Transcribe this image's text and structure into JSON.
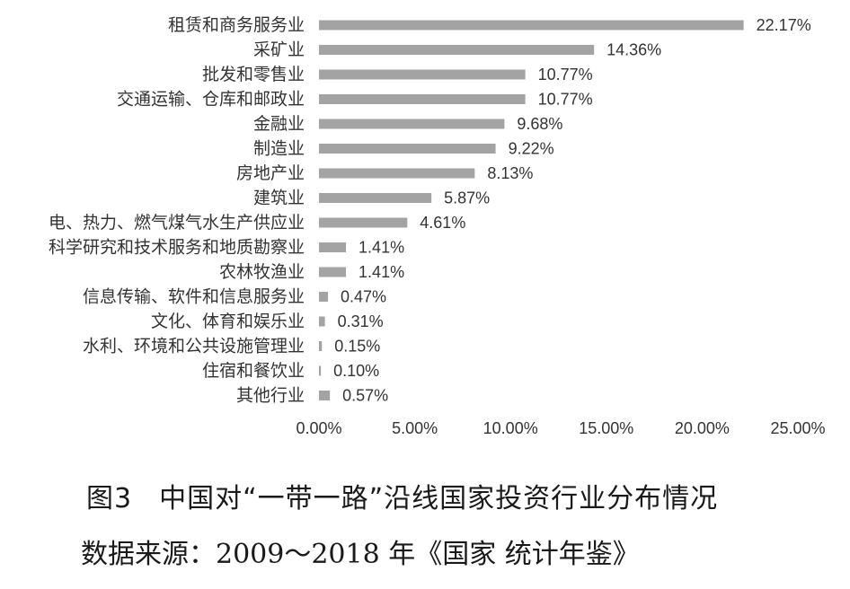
{
  "chart_data": {
    "type": "bar",
    "orientation": "horizontal",
    "categories": [
      "租赁和商务服务业",
      "采矿业",
      "批发和零售业",
      "交通运输、仓库和邮政业",
      "金融业",
      "制造业",
      "房地产业",
      "建筑业",
      "电、热力、燃气煤气水生产供应业",
      "科学研究和技术服务和地质勘察业",
      "农林牧渔业",
      "信息传输、软件和信息服务业",
      "文化、体育和娱乐业",
      "水利、环境和公共设施管理业",
      "住宿和餐饮业",
      "其他行业"
    ],
    "values": [
      22.17,
      14.36,
      10.77,
      10.77,
      9.68,
      9.22,
      8.13,
      5.87,
      4.61,
      1.41,
      1.41,
      0.47,
      0.31,
      0.15,
      0.1,
      0.57
    ],
    "value_labels": [
      "22.17%",
      "14.36%",
      "10.77%",
      "10.77%",
      "9.68%",
      "9.22%",
      "8.13%",
      "5.87%",
      "4.61%",
      "1.41%",
      "1.41%",
      "0.47%",
      "0.31%",
      "0.15%",
      "0.10%",
      "0.57%"
    ],
    "xlim": [
      0,
      25
    ],
    "xticks": [
      0,
      5,
      10,
      15,
      20,
      25
    ],
    "xtick_labels": [
      "0.00%",
      "5.00%",
      "10.00%",
      "15.00%",
      "20.00%",
      "25.00%"
    ],
    "grid": false,
    "bar_color": "#a3a3a3"
  },
  "caption": {
    "number": "图3",
    "title": "中国对“一带一路”沿线国家投资行业分布情况"
  },
  "source": "数据来源：2009～2018 年《国家 统计年鉴》"
}
